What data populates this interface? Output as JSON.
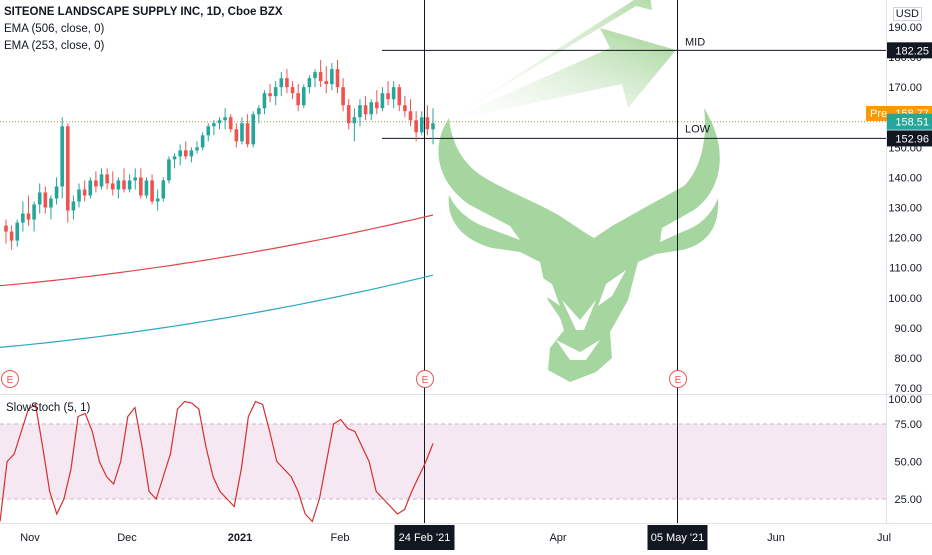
{
  "header": {
    "ticker": "SITEONE LANDSCAPE SUPPLY INC, 1D, Cboe BZX",
    "ema1": "EMA (506, close, 0)",
    "ema2": "EMA (253, close, 0)",
    "currency": "USD"
  },
  "indicator": {
    "label": "SlowStoch (5, 1)"
  },
  "colors": {
    "up": "#26a69a",
    "down": "#ef5350",
    "ema506": "#e0454f",
    "ema253": "#2aa7c4",
    "stoch": "#d32f2f",
    "band": "#f6e8f3",
    "arrow": "#8fca80",
    "bull": "#a5d6a0"
  },
  "annotations": {
    "mid_label": "MID",
    "low_label": "LOW",
    "earnings_marker": "E",
    "pre_label": "Pre"
  },
  "price_axis": {
    "ticks": [
      "190.00",
      "180.00",
      "170.00",
      "160.00",
      "150.00",
      "140.00",
      "130.00",
      "120.00",
      "110.00",
      "100.00",
      "90.00",
      "80.00",
      "70.00"
    ],
    "badges": [
      {
        "text": "182.25",
        "value": 182.25,
        "style": "dark"
      },
      {
        "text": "158.77",
        "value": 158.77,
        "style": "pre"
      },
      {
        "text": "158.51",
        "value": 158.51,
        "style": "last"
      },
      {
        "text": "152.96",
        "value": 152.96,
        "style": "dark"
      }
    ]
  },
  "stoch_axis": {
    "ticks": [
      "100.00",
      "75.00",
      "50.00",
      "25.00"
    ]
  },
  "time_axis": {
    "labels": [
      "Nov",
      "Dec",
      "2021",
      "Feb",
      "Apr",
      "Jun",
      "Jul"
    ],
    "highlights": [
      "24 Feb '21",
      "05 May '21"
    ]
  },
  "chart_data": {
    "type": "candlestick",
    "title": "SITEONE LANDSCAPE SUPPLY INC, 1D, Cboe BZX",
    "ylim": [
      67,
      197
    ],
    "levels": [
      {
        "name": "MID",
        "value": 182.25
      },
      {
        "name": "LOW",
        "value": 152.96
      },
      {
        "name": "last",
        "value": 158.51
      }
    ],
    "candles": [
      [
        124,
        126,
        118,
        122
      ],
      [
        122,
        124,
        116,
        119
      ],
      [
        119,
        126,
        117,
        125
      ],
      [
        125,
        132,
        122,
        128
      ],
      [
        128,
        134,
        124,
        126
      ],
      [
        126,
        132,
        122,
        131
      ],
      [
        131,
        138,
        128,
        135
      ],
      [
        135,
        137,
        128,
        130
      ],
      [
        130,
        134,
        126,
        133
      ],
      [
        133,
        140,
        131,
        137
      ],
      [
        137,
        160,
        133,
        157
      ],
      [
        157,
        158,
        125,
        129
      ],
      [
        129,
        134,
        126,
        132
      ],
      [
        132,
        138,
        130,
        136
      ],
      [
        136,
        139,
        132,
        134
      ],
      [
        134,
        140,
        133,
        139
      ],
      [
        139,
        142,
        135,
        137
      ],
      [
        137,
        143,
        136,
        141
      ],
      [
        141,
        143,
        136,
        138
      ],
      [
        138,
        142,
        134,
        136
      ],
      [
        136,
        140,
        133,
        139
      ],
      [
        139,
        143,
        135,
        136
      ],
      [
        136,
        141,
        135,
        139
      ],
      [
        139,
        143,
        136,
        140
      ],
      [
        140,
        143,
        133,
        134
      ],
      [
        134,
        140,
        133,
        139
      ],
      [
        139,
        141,
        131,
        132
      ],
      [
        132,
        136,
        129,
        133
      ],
      [
        133,
        140,
        132,
        139
      ],
      [
        139,
        147,
        138,
        146
      ],
      [
        146,
        148,
        143,
        147
      ],
      [
        147,
        151,
        144,
        149
      ],
      [
        149,
        152,
        146,
        147
      ],
      [
        147,
        150,
        145,
        149
      ],
      [
        149,
        152,
        148,
        150
      ],
      [
        150,
        155,
        149,
        154
      ],
      [
        154,
        158,
        152,
        157
      ],
      [
        157,
        159,
        154,
        158
      ],
      [
        158,
        160,
        156,
        159
      ],
      [
        159,
        163,
        156,
        160
      ],
      [
        160,
        161,
        155,
        156
      ],
      [
        156,
        158,
        150,
        152
      ],
      [
        152,
        160,
        151,
        158
      ],
      [
        158,
        161,
        150,
        151
      ],
      [
        151,
        162,
        150,
        161
      ],
      [
        161,
        164,
        158,
        163
      ],
      [
        163,
        169,
        161,
        168
      ],
      [
        168,
        171,
        165,
        167
      ],
      [
        167,
        172,
        164,
        170
      ],
      [
        170,
        175,
        167,
        173
      ],
      [
        173,
        176,
        168,
        170
      ],
      [
        170,
        172,
        166,
        168
      ],
      [
        168,
        171,
        162,
        164
      ],
      [
        164,
        171,
        163,
        170
      ],
      [
        170,
        174,
        168,
        173
      ],
      [
        173,
        176,
        170,
        175
      ],
      [
        175,
        179,
        170,
        172
      ],
      [
        172,
        177,
        168,
        171
      ],
      [
        171,
        178,
        169,
        176
      ],
      [
        176,
        179,
        168,
        170
      ],
      [
        170,
        173,
        162,
        164
      ],
      [
        164,
        166,
        156,
        158
      ],
      [
        158,
        163,
        152,
        160
      ],
      [
        160,
        166,
        157,
        164
      ],
      [
        164,
        167,
        159,
        161
      ],
      [
        161,
        166,
        159,
        165
      ],
      [
        165,
        169,
        161,
        163
      ],
      [
        163,
        170,
        162,
        168
      ],
      [
        168,
        172,
        164,
        166
      ],
      [
        166,
        172,
        163,
        170
      ],
      [
        170,
        171,
        162,
        164
      ],
      [
        164,
        167,
        160,
        162
      ],
      [
        162,
        166,
        157,
        159
      ],
      [
        159,
        162,
        152,
        155
      ],
      [
        155,
        162,
        154,
        160
      ],
      [
        160,
        164,
        154,
        156
      ],
      [
        156,
        163,
        151,
        158
      ]
    ],
    "ema_506": {
      "start": 104.0,
      "end": 127.5
    },
    "ema_253": {
      "start": 83.5,
      "end": 107.5
    },
    "stoch_k": [
      10,
      50,
      55,
      70,
      85,
      88,
      60,
      30,
      15,
      25,
      45,
      80,
      82,
      70,
      50,
      40,
      35,
      50,
      80,
      86,
      60,
      30,
      25,
      40,
      55,
      85,
      90,
      89,
      85,
      60,
      40,
      30,
      25,
      20,
      45,
      80,
      90,
      88,
      70,
      50,
      45,
      40,
      30,
      15,
      10,
      25,
      50,
      75,
      78,
      72,
      70,
      60,
      50,
      30,
      25,
      20,
      15,
      18,
      30,
      40,
      50,
      62
    ]
  }
}
